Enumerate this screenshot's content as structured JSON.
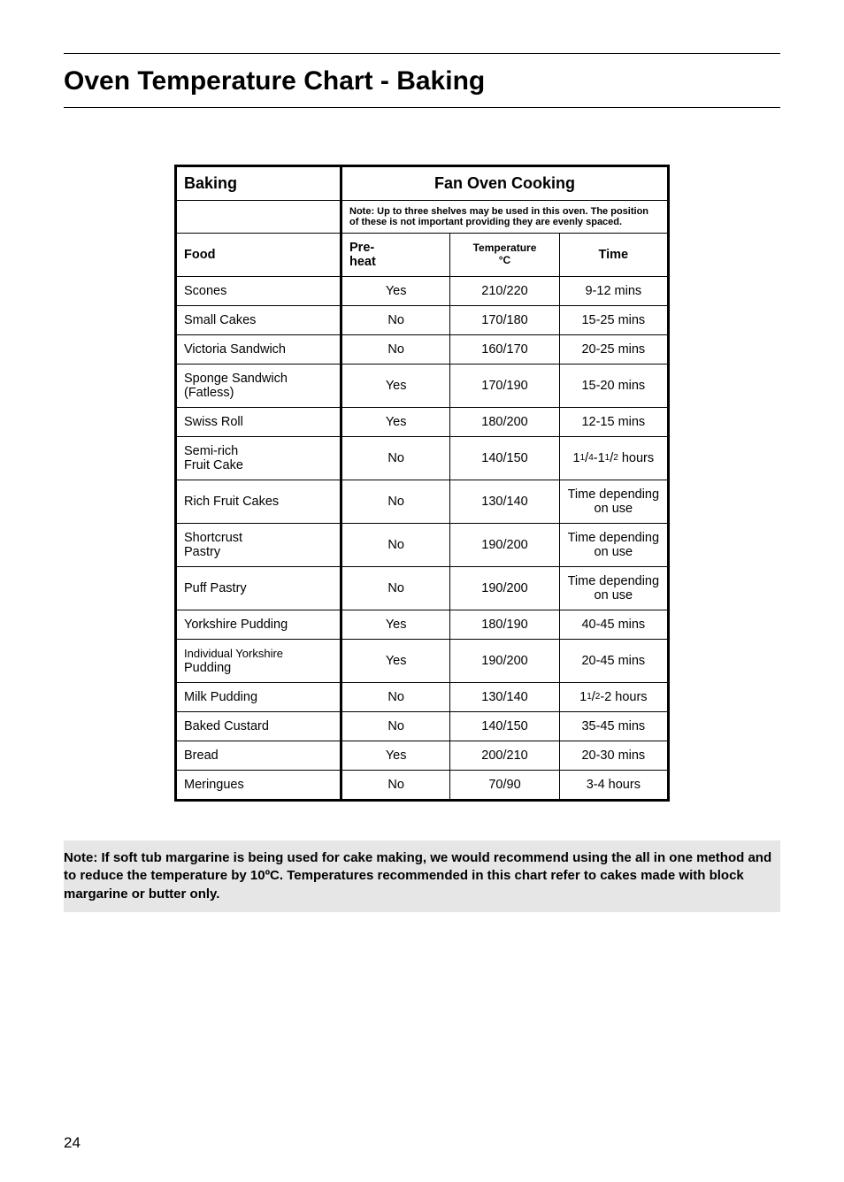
{
  "page": {
    "title": "Oven Temperature Chart - Baking",
    "number": "24"
  },
  "table": {
    "baking_header": "Baking",
    "fan_header": "Fan Oven Cooking",
    "note": "Note: Up to three shelves may be used in this oven. The position of these is not important providing they are evenly spaced.",
    "columns": {
      "food": "Food",
      "preheat_line1": "Pre-",
      "preheat_line2": "heat",
      "temp_line1": "Temperature",
      "temp_line2": "°C",
      "time": "Time"
    },
    "rows": [
      {
        "food": "Scones",
        "pre": "Yes",
        "temp": "210/220",
        "time": "9-12 mins"
      },
      {
        "food": "Small Cakes",
        "pre": "No",
        "temp": "170/180",
        "time": "15-25 mins"
      },
      {
        "food": "Victoria Sandwich",
        "pre": "No",
        "temp": "160/170",
        "time": "20-25 mins"
      },
      {
        "food": "Sponge Sandwich\n(Fatless)",
        "pre": "Yes",
        "temp": "170/190",
        "time": "15-20 mins"
      },
      {
        "food": "Swiss Roll",
        "pre": "Yes",
        "temp": "180/200",
        "time": "12-15 mins"
      },
      {
        "food": "Semi-rich\nFruit Cake",
        "pre": "No",
        "temp": "140/150",
        "time_html": "1<sup class=\"frac\">1</sup>/<sub class=\"frac\">4</sub>-1<sup class=\"frac\">1</sup>/<sub class=\"frac\">2</sub> hours"
      },
      {
        "food": "Rich Fruit Cakes",
        "pre": "No",
        "temp": "130/140",
        "time": "Time depending on use"
      },
      {
        "food": "Shortcrust\nPastry",
        "pre": "No",
        "temp": "190/200",
        "time": "Time depending on use"
      },
      {
        "food": "Puff Pastry",
        "pre": "No",
        "temp": "190/200",
        "time": "Time depending on use"
      },
      {
        "food": "Yorkshire Pudding",
        "pre": "Yes",
        "temp": "180/190",
        "time": "40-45 mins"
      },
      {
        "food": "Individual Yorkshire\nPudding",
        "pre": "Yes",
        "temp": "190/200",
        "time": "20-45 mins"
      },
      {
        "food": "Milk Pudding",
        "pre": "No",
        "temp": "130/140",
        "time_html": "1<sup class=\"frac\">1</sup>/<sub class=\"frac\">2</sub>-2 hours"
      },
      {
        "food": "Baked Custard",
        "pre": "No",
        "temp": "140/150",
        "time": "35-45 mins"
      },
      {
        "food": "Bread",
        "pre": "Yes",
        "temp": "200/210",
        "time": "20-30 mins"
      },
      {
        "food": "Meringues",
        "pre": "No",
        "temp": "70/90",
        "time": "3-4 hours"
      }
    ]
  },
  "footer_note": "Note: If soft tub margarine is being used for cake making, we would recommend using the all in one method and to reduce the temperature by 10ºC. Temperatures recommended in this chart refer to cakes made with block  margarine or butter only.",
  "colors": {
    "background": "#ffffff",
    "text": "#000000",
    "note_bg": "#e6e6e6",
    "border": "#000000"
  }
}
